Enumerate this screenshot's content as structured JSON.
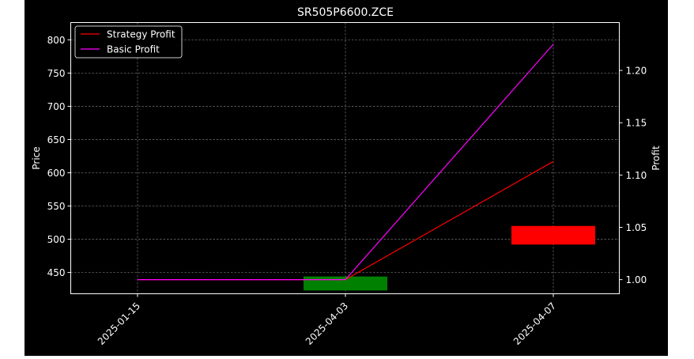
{
  "chart_data": {
    "type": "line",
    "title": "SR505P6600.ZCE",
    "xlabel": "",
    "ylabel_left": "Price",
    "ylabel_right": "Profit",
    "categories": [
      "2025-01-15",
      "2025-04-03",
      "2025-04-07"
    ],
    "price_axis": {
      "ylim": [
        418,
        826
      ],
      "ticks": [
        "450",
        "500",
        "550",
        "600",
        "650",
        "700",
        "750",
        "800"
      ]
    },
    "profit_axis": {
      "ylim": [
        0.9865,
        1.2458
      ],
      "ticks": [
        "1.00",
        "1.05",
        "1.10",
        "1.15",
        "1.20"
      ]
    },
    "candles": [
      {
        "x": "2025-04-03",
        "open": 444,
        "close": 423,
        "color": "#008000"
      },
      {
        "x": "2025-04-07",
        "open": 492,
        "close": 520,
        "color": "#ff0000"
      }
    ],
    "series": [
      {
        "name": "Strategy Profit",
        "axis": "profit",
        "color": "#ff0000",
        "values": [
          1.0,
          1.0,
          1.113
        ]
      },
      {
        "name": "Basic Profit",
        "axis": "profit",
        "color": "#ff00ff",
        "values": [
          1.0,
          1.0,
          1.225
        ]
      }
    ],
    "grid": true,
    "legend_position": "top-left"
  }
}
